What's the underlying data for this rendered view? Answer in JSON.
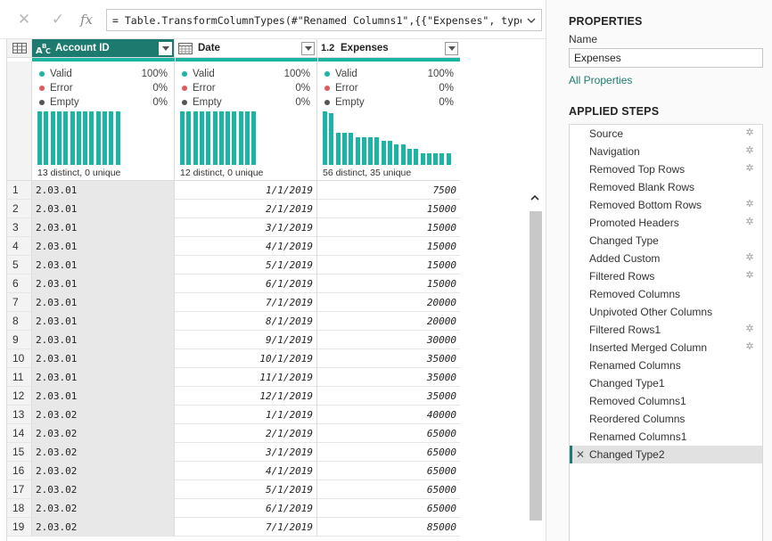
{
  "formula_bar": {
    "formula": "= Table.TransformColumnTypes(#\"Renamed Columns1\",{{\"Expenses\", type"
  },
  "columns": [
    {
      "name": "Account ID",
      "type_icon": "ABC",
      "valid": "100%",
      "error": "0%",
      "empty": "0%",
      "distinct": "13 distinct, 0 unique",
      "hist": [
        1,
        1,
        1,
        1,
        1,
        1,
        1,
        1,
        1,
        1,
        1,
        1,
        1
      ]
    },
    {
      "name": "Date",
      "type_icon": "calendar-icon",
      "valid": "100%",
      "error": "0%",
      "empty": "0%",
      "distinct": "12 distinct, 0 unique",
      "hist": [
        1,
        1,
        1,
        1,
        1,
        1,
        1,
        1,
        1,
        1,
        1,
        1
      ]
    },
    {
      "name": "Expenses",
      "type_icon": "1.2",
      "valid": "100%",
      "error": "0%",
      "empty": "0%",
      "distinct": "56 distinct, 35 unique",
      "hist": [
        1.0,
        0.97,
        0.6,
        0.6,
        0.6,
        0.52,
        0.52,
        0.52,
        0.52,
        0.45,
        0.45,
        0.38,
        0.38,
        0.3,
        0.3,
        0.22,
        0.22,
        0.22,
        0.22,
        0.22
      ]
    }
  ],
  "quality_labels": {
    "valid": "Valid",
    "error": "Error",
    "empty": "Empty"
  },
  "colors": {
    "accent": "#1c7a6f",
    "bar": "#1cb5a3",
    "valid": "#1cb5a3",
    "error": "#e05c5c",
    "empty": "#555555"
  },
  "rows": [
    [
      "1",
      "2.03.01",
      "1/1/2019",
      "7500"
    ],
    [
      "2",
      "2.03.01",
      "2/1/2019",
      "15000"
    ],
    [
      "3",
      "2.03.01",
      "3/1/2019",
      "15000"
    ],
    [
      "4",
      "2.03.01",
      "4/1/2019",
      "15000"
    ],
    [
      "5",
      "2.03.01",
      "5/1/2019",
      "15000"
    ],
    [
      "6",
      "2.03.01",
      "6/1/2019",
      "15000"
    ],
    [
      "7",
      "2.03.01",
      "7/1/2019",
      "20000"
    ],
    [
      "8",
      "2.03.01",
      "8/1/2019",
      "20000"
    ],
    [
      "9",
      "2.03.01",
      "9/1/2019",
      "30000"
    ],
    [
      "10",
      "2.03.01",
      "10/1/2019",
      "35000"
    ],
    [
      "11",
      "2.03.01",
      "11/1/2019",
      "35000"
    ],
    [
      "12",
      "2.03.01",
      "12/1/2019",
      "35000"
    ],
    [
      "13",
      "2.03.02",
      "1/1/2019",
      "40000"
    ],
    [
      "14",
      "2.03.02",
      "2/1/2019",
      "65000"
    ],
    [
      "15",
      "2.03.02",
      "3/1/2019",
      "65000"
    ],
    [
      "16",
      "2.03.02",
      "4/1/2019",
      "65000"
    ],
    [
      "17",
      "2.03.02",
      "5/1/2019",
      "65000"
    ],
    [
      "18",
      "2.03.02",
      "6/1/2019",
      "65000"
    ],
    [
      "19",
      "2.03.02",
      "7/1/2019",
      "85000"
    ]
  ],
  "properties": {
    "title": "PROPERTIES",
    "name_label": "Name",
    "name_value": "Expenses",
    "all_properties": "All Properties"
  },
  "applied_steps": {
    "title": "APPLIED STEPS",
    "steps": [
      {
        "label": "Source",
        "gear": true
      },
      {
        "label": "Navigation",
        "gear": true
      },
      {
        "label": "Removed Top Rows",
        "gear": true
      },
      {
        "label": "Removed Blank Rows",
        "gear": false
      },
      {
        "label": "Removed Bottom Rows",
        "gear": true
      },
      {
        "label": "Promoted Headers",
        "gear": true
      },
      {
        "label": "Changed Type",
        "gear": false
      },
      {
        "label": "Added Custom",
        "gear": true
      },
      {
        "label": "Filtered Rows",
        "gear": true
      },
      {
        "label": "Removed Columns",
        "gear": false
      },
      {
        "label": "Unpivoted Other Columns",
        "gear": false
      },
      {
        "label": "Filtered Rows1",
        "gear": true
      },
      {
        "label": "Inserted Merged Column",
        "gear": true
      },
      {
        "label": "Renamed Columns",
        "gear": false
      },
      {
        "label": "Changed Type1",
        "gear": false
      },
      {
        "label": "Removed Columns1",
        "gear": false
      },
      {
        "label": "Reordered Columns",
        "gear": false
      },
      {
        "label": "Renamed Columns1",
        "gear": false
      },
      {
        "label": "Changed Type2",
        "gear": false,
        "active": true
      }
    ]
  }
}
